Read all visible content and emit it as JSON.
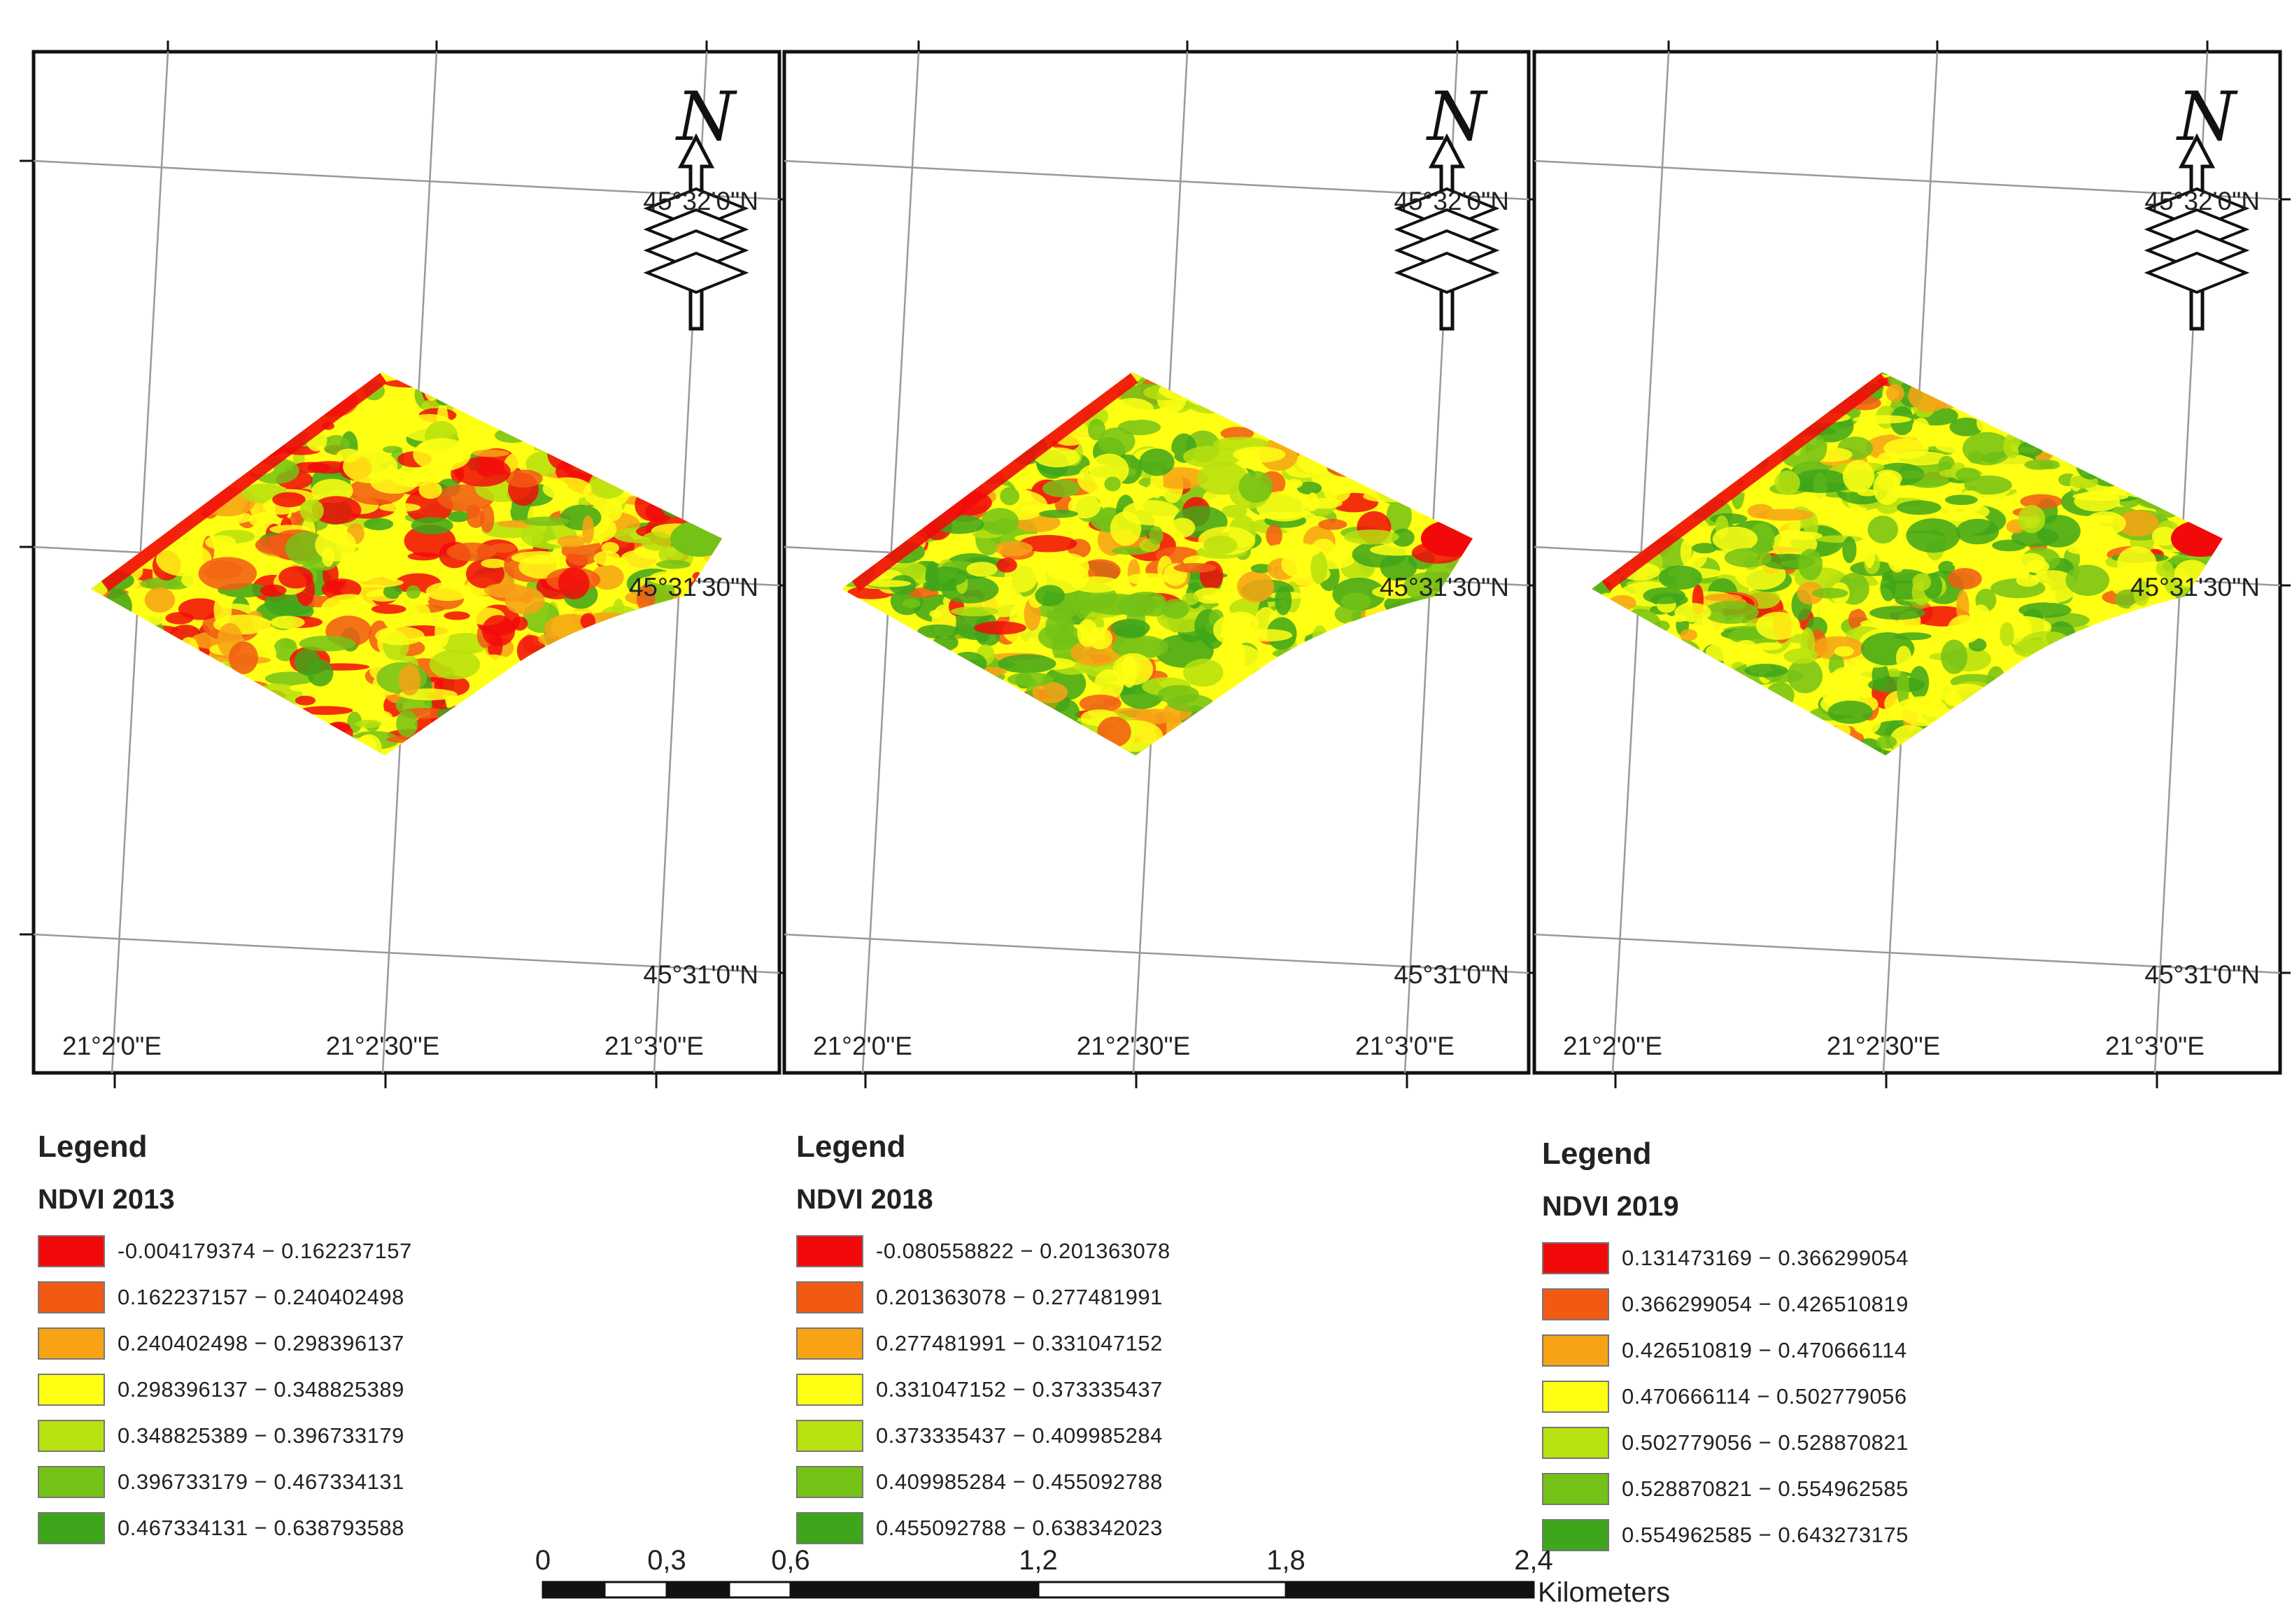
{
  "panels": [
    {
      "id": "2013",
      "lat_labels": [
        "45°32'0\"N",
        "45°31'30\"N",
        "45°31'0\"N"
      ],
      "lon_labels": [
        "21°2'0\"E",
        "21°2'30\"E",
        "21°3'0\"E"
      ],
      "north_arrow_letter": "N",
      "legend": {
        "title": "Legend",
        "layer": "NDVI 2013",
        "classes": [
          {
            "range": "-0.004179374 − 0.162237157",
            "color": "#f20a0a"
          },
          {
            "range": "0.162237157 − 0.240402498",
            "color": "#f25a14"
          },
          {
            "range": "0.240402498 − 0.298396137",
            "color": "#f7a315"
          },
          {
            "range": "0.298396137 − 0.348825389",
            "color": "#ffff14"
          },
          {
            "range": "0.348825389 − 0.396733179",
            "color": "#b7e10f"
          },
          {
            "range": "0.396733179 − 0.467334131",
            "color": "#74c216"
          },
          {
            "range": "0.467334131 − 0.638793588",
            "color": "#3ea61a"
          }
        ]
      },
      "field_mix": {
        "red": 0.18,
        "orange": 0.2,
        "yellow": 0.34,
        "green": 0.28
      }
    },
    {
      "id": "2018",
      "lat_labels": [
        "45°32'0\"N",
        "45°31'30\"N",
        "45°31'0\"N"
      ],
      "lon_labels": [
        "21°2'0\"E",
        "21°2'30\"E",
        "21°3'0\"E"
      ],
      "north_arrow_letter": "N",
      "legend": {
        "title": "Legend",
        "layer": "NDVI 2018",
        "classes": [
          {
            "range": "-0.080558822 − 0.201363078",
            "color": "#f20a0a"
          },
          {
            "range": "0.201363078 − 0.277481991",
            "color": "#f25a14"
          },
          {
            "range": "0.277481991 − 0.331047152",
            "color": "#f7a315"
          },
          {
            "range": "0.331047152 − 0.373335437",
            "color": "#ffff14"
          },
          {
            "range": "0.373335437 − 0.409985284",
            "color": "#b7e10f"
          },
          {
            "range": "0.409985284 − 0.455092788",
            "color": "#74c216"
          },
          {
            "range": "0.455092788 − 0.638342023",
            "color": "#3ea61a"
          }
        ]
      },
      "field_mix": {
        "red": 0.06,
        "orange": 0.12,
        "yellow": 0.36,
        "green": 0.46
      }
    },
    {
      "id": "2019",
      "lat_labels": [
        "45°32'0\"N",
        "45°31'30\"N",
        "45°31'0\"N"
      ],
      "lon_labels": [
        "21°2'0\"E",
        "21°2'30\"E",
        "21°3'0\"E"
      ],
      "north_arrow_letter": "N",
      "legend": {
        "title": "Legend",
        "layer": "NDVI 2019",
        "classes": [
          {
            "range": "0.131473169 − 0.366299054",
            "color": "#f20a0a"
          },
          {
            "range": "0.366299054 − 0.426510819",
            "color": "#f25a14"
          },
          {
            "range": "0.426510819 − 0.470666114",
            "color": "#f7a315"
          },
          {
            "range": "0.470666114 − 0.502779056",
            "color": "#ffff14"
          },
          {
            "range": "0.502779056 − 0.528870821",
            "color": "#b7e10f"
          },
          {
            "range": "0.528870821 − 0.554962585",
            "color": "#74c216"
          },
          {
            "range": "0.554962585 − 0.643273175",
            "color": "#3ea61a"
          }
        ]
      },
      "field_mix": {
        "red": 0.04,
        "orange": 0.08,
        "yellow": 0.3,
        "green": 0.58
      }
    }
  ],
  "scale_bar": {
    "ticks": [
      "0",
      "0,3",
      "0,6",
      "1,2",
      "1,8",
      "2,4"
    ],
    "unit": "Kilometers"
  }
}
